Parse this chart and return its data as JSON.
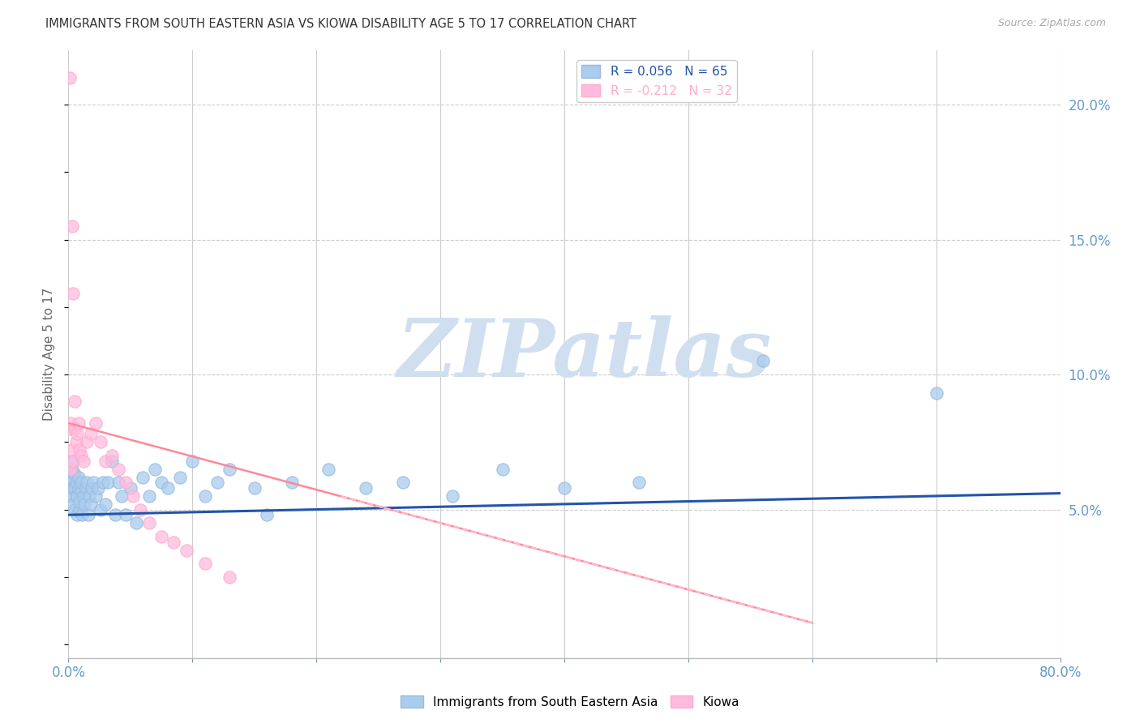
{
  "title": "IMMIGRANTS FROM SOUTH EASTERN ASIA VS KIOWA DISABILITY AGE 5 TO 17 CORRELATION CHART",
  "source": "Source: ZipAtlas.com",
  "ylabel": "Disability Age 5 to 17",
  "watermark": "ZIPatlas",
  "legend_label_1": "R = 0.056   N = 65",
  "legend_label_2": "R = -0.212   N = 32",
  "legend_label_blue": "Immigrants from South Eastern Asia",
  "legend_label_pink": "Kiowa",
  "blue_scatter_x": [
    0.001,
    0.002,
    0.002,
    0.003,
    0.003,
    0.004,
    0.004,
    0.005,
    0.005,
    0.005,
    0.006,
    0.006,
    0.007,
    0.007,
    0.008,
    0.008,
    0.009,
    0.009,
    0.01,
    0.01,
    0.011,
    0.012,
    0.013,
    0.014,
    0.015,
    0.016,
    0.017,
    0.018,
    0.019,
    0.02,
    0.022,
    0.024,
    0.026,
    0.028,
    0.03,
    0.032,
    0.035,
    0.038,
    0.04,
    0.043,
    0.046,
    0.05,
    0.055,
    0.06,
    0.065,
    0.07,
    0.075,
    0.08,
    0.09,
    0.1,
    0.11,
    0.12,
    0.13,
    0.15,
    0.16,
    0.18,
    0.21,
    0.24,
    0.27,
    0.31,
    0.35,
    0.4,
    0.46,
    0.56,
    0.7
  ],
  "blue_scatter_y": [
    0.06,
    0.055,
    0.062,
    0.058,
    0.065,
    0.052,
    0.068,
    0.05,
    0.058,
    0.063,
    0.055,
    0.06,
    0.048,
    0.055,
    0.058,
    0.062,
    0.05,
    0.053,
    0.057,
    0.06,
    0.048,
    0.055,
    0.052,
    0.058,
    0.06,
    0.048,
    0.055,
    0.052,
    0.058,
    0.06,
    0.055,
    0.058,
    0.05,
    0.06,
    0.052,
    0.06,
    0.068,
    0.048,
    0.06,
    0.055,
    0.048,
    0.058,
    0.045,
    0.062,
    0.055,
    0.065,
    0.06,
    0.058,
    0.062,
    0.068,
    0.055,
    0.06,
    0.065,
    0.058,
    0.048,
    0.06,
    0.065,
    0.058,
    0.06,
    0.055,
    0.065,
    0.058,
    0.06,
    0.105,
    0.093
  ],
  "pink_scatter_x": [
    0.001,
    0.001,
    0.002,
    0.002,
    0.003,
    0.003,
    0.004,
    0.004,
    0.005,
    0.005,
    0.006,
    0.007,
    0.008,
    0.009,
    0.01,
    0.012,
    0.015,
    0.018,
    0.022,
    0.026,
    0.03,
    0.035,
    0.04,
    0.046,
    0.052,
    0.058,
    0.065,
    0.075,
    0.085,
    0.095,
    0.11,
    0.13
  ],
  "pink_scatter_y": [
    0.21,
    0.08,
    0.082,
    0.065,
    0.155,
    0.072,
    0.13,
    0.068,
    0.09,
    0.08,
    0.075,
    0.078,
    0.082,
    0.072,
    0.07,
    0.068,
    0.075,
    0.078,
    0.082,
    0.075,
    0.068,
    0.07,
    0.065,
    0.06,
    0.055,
    0.05,
    0.045,
    0.04,
    0.038,
    0.035,
    0.03,
    0.025
  ],
  "blue_line_x": [
    0.0,
    0.8
  ],
  "blue_line_y": [
    0.048,
    0.056
  ],
  "pink_line_x": [
    0.0,
    0.6
  ],
  "pink_line_y": [
    0.082,
    0.008
  ],
  "xlim": [
    0.0,
    0.8
  ],
  "ylim": [
    -0.005,
    0.22
  ],
  "yticks_right": [
    0.05,
    0.1,
    0.15,
    0.2
  ],
  "ytick_labels_right": [
    "5.0%",
    "10.0%",
    "15.0%",
    "20.0%"
  ],
  "grid_yticks": [
    0.05,
    0.1,
    0.15,
    0.2
  ],
  "xticks": [
    0.0,
    0.1,
    0.2,
    0.3,
    0.4,
    0.5,
    0.6,
    0.7,
    0.8
  ],
  "blue_color": "#99bbdd",
  "blue_fill_color": "#aaccee",
  "pink_color": "#ffaacc",
  "pink_fill_color": "#ffbbdd",
  "blue_line_color": "#2255aa",
  "pink_line_color": "#ff8899",
  "pink_dash_color": "#ffbbcc",
  "grid_color": "#cccccc",
  "grid_style": "--",
  "title_color": "#333333",
  "axis_tick_color": "#6699cc",
  "watermark_color": "#d0dff0",
  "background_color": "#ffffff",
  "legend_box_color": "#cccccc"
}
